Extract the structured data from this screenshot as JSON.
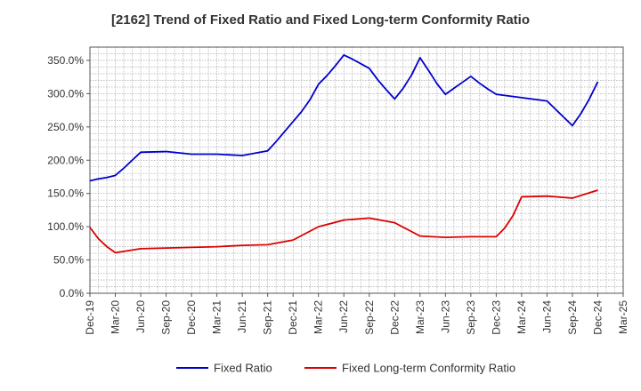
{
  "chart_data": {
    "type": "line",
    "title": "[2162]  Trend of Fixed Ratio and Fixed Long-term Conformity Ratio",
    "xlabel": "",
    "ylabel": "",
    "ylim": [
      0,
      370
    ],
    "yticks": [
      0,
      50,
      100,
      150,
      200,
      250,
      300,
      350
    ],
    "ytick_labels": [
      "0.0%",
      "50.0%",
      "100.0%",
      "150.0%",
      "200.0%",
      "250.0%",
      "300.0%",
      "350.0%"
    ],
    "xlim": [
      "Dec-19",
      "Mar-25"
    ],
    "xtick_labels": [
      "Dec-19",
      "Mar-20",
      "Jun-20",
      "Sep-20",
      "Dec-20",
      "Mar-21",
      "Jun-21",
      "Sep-21",
      "Dec-21",
      "Mar-22",
      "Jun-22",
      "Sep-22",
      "Dec-22",
      "Mar-23",
      "Jun-23",
      "Sep-23",
      "Dec-23",
      "Mar-24",
      "Jun-24",
      "Sep-24",
      "Dec-24",
      "Mar-25"
    ],
    "grid": true,
    "legend_position": "bottom",
    "series": [
      {
        "name": "Fixed Ratio",
        "color": "#0000cc",
        "x": [
          "Dec-19",
          "Jan-20",
          "Feb-20",
          "Mar-20",
          "Apr-20",
          "May-20",
          "Jun-20",
          "Sep-20",
          "Dec-20",
          "Mar-21",
          "Jun-21",
          "Sep-21",
          "Oct-21",
          "Nov-21",
          "Dec-21",
          "Jan-22",
          "Feb-22",
          "Mar-22",
          "Apr-22",
          "May-22",
          "Jun-22",
          "Jul-22",
          "Aug-22",
          "Sep-22",
          "Oct-22",
          "Nov-22",
          "Dec-22",
          "Jan-23",
          "Feb-23",
          "Mar-23",
          "Apr-23",
          "May-23",
          "Jun-23",
          "Jul-23",
          "Aug-23",
          "Sep-23",
          "Oct-23",
          "Nov-23",
          "Dec-23",
          "Mar-24",
          "Jun-24",
          "Sep-24",
          "Oct-24",
          "Nov-24",
          "Dec-24"
        ],
        "values": [
          169,
          172,
          174,
          177,
          188,
          200,
          212,
          213,
          209,
          209,
          207,
          214,
          228,
          243,
          258,
          273,
          291,
          314,
          327,
          342,
          358,
          352,
          345,
          338,
          321,
          306,
          292,
          308,
          328,
          354,
          335,
          315,
          299,
          308,
          317,
          326,
          316,
          307,
          299,
          294,
          289,
          252,
          270,
          292,
          318
        ]
      },
      {
        "name": "Fixed Long-term Conformity Ratio",
        "color": "#dd0000",
        "x": [
          "Dec-19",
          "Jan-20",
          "Feb-20",
          "Mar-20",
          "Apr-20",
          "May-20",
          "Jun-20",
          "Sep-20",
          "Dec-20",
          "Mar-21",
          "Jun-21",
          "Sep-21",
          "Dec-21",
          "Mar-22",
          "Jun-22",
          "Sep-22",
          "Dec-22",
          "Mar-23",
          "Jun-23",
          "Sep-23",
          "Dec-23",
          "Jan-24",
          "Feb-24",
          "Mar-24",
          "Jun-24",
          "Sep-24",
          "Dec-24"
        ],
        "values": [
          99,
          82,
          70,
          61,
          63,
          65,
          67,
          68,
          69,
          70,
          72,
          73,
          80,
          100,
          110,
          113,
          106,
          86,
          84,
          85,
          85,
          98,
          117,
          145,
          146,
          143,
          155
        ]
      }
    ]
  }
}
